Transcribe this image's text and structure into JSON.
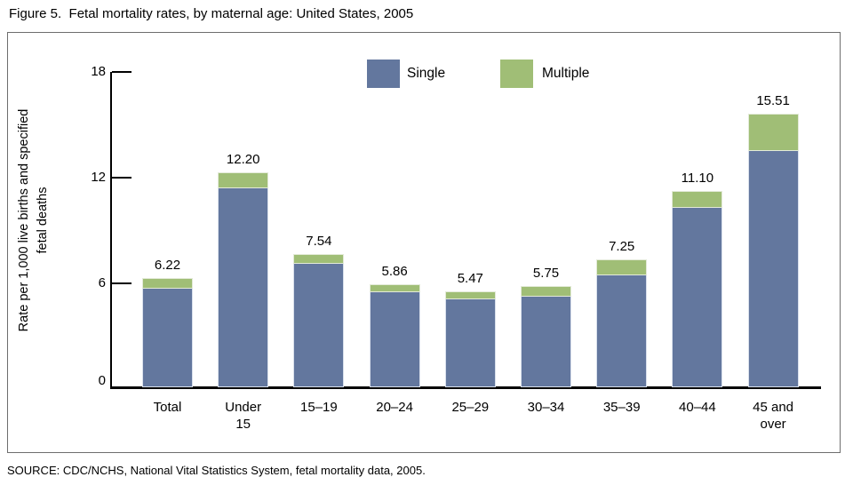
{
  "page": {
    "title": "Figure 5.  Fetal mortality rates, by maternal age: United States, 2005",
    "source": "SOURCE: CDC/NCHS, National Vital Statistics System, fetal mortality data, 2005."
  },
  "chart_data": {
    "type": "bar",
    "stacked": true,
    "title": "Figure 5.  Fetal mortality rates, by maternal age: United States, 2005",
    "categories": [
      "Total",
      "Under 15",
      "15–19",
      "20–24",
      "25–29",
      "30–34",
      "35–39",
      "40–44",
      "45 and over"
    ],
    "category_lines": [
      [
        "Total"
      ],
      [
        "Under",
        "15"
      ],
      [
        "15–19"
      ],
      [
        "20–24"
      ],
      [
        "25–29"
      ],
      [
        "30–34"
      ],
      [
        "35–39"
      ],
      [
        "40–44"
      ],
      [
        "45 and",
        "over"
      ]
    ],
    "series": [
      {
        "name": "Single",
        "color": "#63779E",
        "values": [
          5.6,
          11.31,
          6.99,
          5.39,
          5.0,
          5.16,
          6.36,
          10.16,
          13.39
        ]
      },
      {
        "name": "Multiple",
        "color": "#A0BE76",
        "values": [
          0.62,
          0.89,
          0.55,
          0.47,
          0.47,
          0.59,
          0.89,
          0.94,
          2.12
        ]
      }
    ],
    "totals": [
      "6.22",
      "12.20",
      "7.54",
      "5.86",
      "5.47",
      "5.75",
      "7.25",
      "11.10",
      "15.51"
    ],
    "ylabel": "Rate per 1,000 live births and specified fetal deaths",
    "ylabel_lines": [
      "Rate per 1,000 live births and specified",
      "fetal deaths"
    ],
    "yticks": [
      0,
      6,
      12,
      18
    ],
    "ylim": [
      0,
      18
    ],
    "grid": false,
    "legend": {
      "position": "top-center",
      "items": [
        "Single",
        "Multiple"
      ]
    },
    "source": "SOURCE: CDC/NCHS, National Vital Statistics System, fetal mortality data, 2005."
  },
  "colors": {
    "single": "#63779E",
    "multiple": "#A0BE76",
    "axis": "#000000",
    "box_border": "#6e6e6e",
    "background": "#ffffff"
  }
}
